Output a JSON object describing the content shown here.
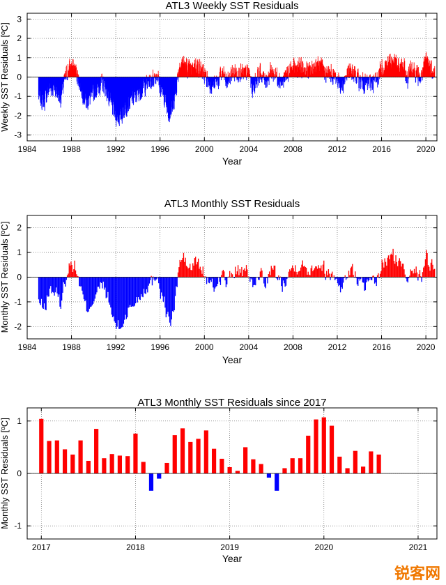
{
  "colors": {
    "positive": "#ff0000",
    "negative": "#0000ff",
    "grid": "#555555",
    "axis": "#000000"
  },
  "watermark": {
    "text": "锐客网",
    "color": "#f07800"
  },
  "chart_data": [
    {
      "type": "bar",
      "title": "ATL3 Weekly SST Residuals",
      "xlabel": "Year",
      "ylabel": "Weekly SST Residuals [ºC]",
      "xlim": [
        1984,
        2021
      ],
      "ylim": [
        -3.3,
        3.3
      ],
      "xticks": [
        1984,
        1988,
        1992,
        1996,
        2000,
        2004,
        2008,
        2012,
        2016,
        2020
      ],
      "yticks": [
        -3,
        -2,
        -1,
        0,
        1,
        2,
        3
      ],
      "grid": true,
      "step": 0.0192,
      "start": 1985.0,
      "anchors": [
        [
          1985.0,
          -1.0
        ],
        [
          1985.5,
          -1.3
        ],
        [
          1986.0,
          -0.5
        ],
        [
          1986.5,
          -0.6
        ],
        [
          1987.0,
          -1.1
        ],
        [
          1987.3,
          -0.3
        ],
        [
          1987.6,
          0.3
        ],
        [
          1988.0,
          0.6
        ],
        [
          1988.4,
          0.3
        ],
        [
          1988.8,
          -0.5
        ],
        [
          1989.3,
          -1.3
        ],
        [
          1989.8,
          -1.0
        ],
        [
          1990.3,
          -0.6
        ],
        [
          1990.8,
          -0.3
        ],
        [
          1991.2,
          -0.8
        ],
        [
          1991.6,
          -1.5
        ],
        [
          1992.0,
          -2.0
        ],
        [
          1992.4,
          -2.1
        ],
        [
          1992.8,
          -1.6
        ],
        [
          1993.2,
          -1.3
        ],
        [
          1993.7,
          -1.0
        ],
        [
          1994.2,
          -0.7
        ],
        [
          1994.7,
          -0.4
        ],
        [
          1995.2,
          -0.2
        ],
        [
          1995.7,
          0.2
        ],
        [
          1996.0,
          -0.6
        ],
        [
          1996.4,
          -1.1
        ],
        [
          1996.8,
          -1.9
        ],
        [
          1997.1,
          -1.6
        ],
        [
          1997.4,
          -0.7
        ],
        [
          1997.7,
          0.6
        ],
        [
          1998.0,
          0.8
        ],
        [
          1998.4,
          0.5
        ],
        [
          1998.8,
          0.3
        ],
        [
          1999.2,
          0.7
        ],
        [
          1999.6,
          0.4
        ],
        [
          2000.0,
          0.1
        ],
        [
          2000.4,
          -0.3
        ],
        [
          2000.8,
          -0.4
        ],
        [
          2001.2,
          -0.2
        ],
        [
          2001.6,
          0.2
        ],
        [
          2002.0,
          -0.3
        ],
        [
          2002.5,
          0.2
        ],
        [
          2003.0,
          0.3
        ],
        [
          2003.5,
          0.1
        ],
        [
          2004.0,
          0.3
        ],
        [
          2004.3,
          -0.6
        ],
        [
          2004.6,
          -0.2
        ],
        [
          2005.0,
          0.2
        ],
        [
          2005.5,
          -0.2
        ],
        [
          2006.0,
          0.3
        ],
        [
          2006.5,
          0.1
        ],
        [
          2007.0,
          -0.3
        ],
        [
          2007.5,
          0.2
        ],
        [
          2008.0,
          0.4
        ],
        [
          2008.5,
          0.5
        ],
        [
          2009.0,
          0.4
        ],
        [
          2009.5,
          0.3
        ],
        [
          2010.0,
          0.6
        ],
        [
          2010.5,
          0.5
        ],
        [
          2011.0,
          0.2
        ],
        [
          2011.5,
          0.1
        ],
        [
          2012.0,
          -0.1
        ],
        [
          2012.4,
          -0.5
        ],
        [
          2012.8,
          0.1
        ],
        [
          2013.2,
          0.3
        ],
        [
          2013.6,
          0.1
        ],
        [
          2014.0,
          -0.2
        ],
        [
          2014.5,
          -0.4
        ],
        [
          2015.0,
          -0.3
        ],
        [
          2015.5,
          -0.2
        ],
        [
          2016.0,
          0.5
        ],
        [
          2016.5,
          0.7
        ],
        [
          2017.0,
          0.9
        ],
        [
          2017.5,
          0.5
        ],
        [
          2018.0,
          0.5
        ],
        [
          2018.3,
          -0.2
        ],
        [
          2018.6,
          0.6
        ],
        [
          2019.0,
          0.3
        ],
        [
          2019.5,
          -0.1
        ],
        [
          2020.0,
          0.9
        ],
        [
          2020.4,
          0.5
        ],
        [
          2020.75,
          0.3
        ]
      ]
    },
    {
      "type": "bar",
      "title": "ATL3 Monthly SST Residuals",
      "xlabel": "Year",
      "ylabel": "Monthly SST Residuals [ºC]",
      "xlim": [
        1984,
        2021
      ],
      "ylim": [
        -2.5,
        2.5
      ],
      "xticks": [
        1984,
        1988,
        1992,
        1996,
        2000,
        2004,
        2008,
        2012,
        2016,
        2020
      ],
      "yticks": [
        -2,
        -1,
        0,
        1,
        2
      ],
      "grid": true,
      "step": 0.08333,
      "start": 1985.0,
      "anchors": [
        [
          1985.0,
          -1.0
        ],
        [
          1985.5,
          -1.3
        ],
        [
          1986.0,
          -0.5
        ],
        [
          1986.5,
          -0.6
        ],
        [
          1987.0,
          -1.1
        ],
        [
          1987.3,
          -0.3
        ],
        [
          1987.6,
          0.3
        ],
        [
          1988.0,
          0.6
        ],
        [
          1988.4,
          0.3
        ],
        [
          1988.8,
          -0.5
        ],
        [
          1989.3,
          -1.3
        ],
        [
          1989.8,
          -1.0
        ],
        [
          1990.3,
          -0.6
        ],
        [
          1990.8,
          -0.3
        ],
        [
          1991.2,
          -0.8
        ],
        [
          1991.6,
          -1.5
        ],
        [
          1992.0,
          -2.0
        ],
        [
          1992.4,
          -2.1
        ],
        [
          1992.8,
          -1.6
        ],
        [
          1993.2,
          -1.3
        ],
        [
          1993.7,
          -1.0
        ],
        [
          1994.2,
          -0.7
        ],
        [
          1994.7,
          -0.4
        ],
        [
          1995.2,
          -0.2
        ],
        [
          1995.7,
          0.2
        ],
        [
          1996.0,
          -0.6
        ],
        [
          1996.4,
          -1.1
        ],
        [
          1996.8,
          -1.9
        ],
        [
          1997.1,
          -1.6
        ],
        [
          1997.4,
          -0.7
        ],
        [
          1997.7,
          0.6
        ],
        [
          1998.0,
          0.8
        ],
        [
          1998.4,
          0.5
        ],
        [
          1998.8,
          0.3
        ],
        [
          1999.2,
          0.7
        ],
        [
          1999.6,
          0.4
        ],
        [
          2000.0,
          0.1
        ],
        [
          2000.4,
          -0.3
        ],
        [
          2000.8,
          -0.4
        ],
        [
          2001.2,
          -0.2
        ],
        [
          2001.6,
          0.2
        ],
        [
          2002.0,
          -0.3
        ],
        [
          2002.5,
          0.2
        ],
        [
          2003.0,
          0.3
        ],
        [
          2003.5,
          0.1
        ],
        [
          2004.0,
          0.3
        ],
        [
          2004.3,
          -0.6
        ],
        [
          2004.6,
          -0.2
        ],
        [
          2005.0,
          0.2
        ],
        [
          2005.5,
          -0.2
        ],
        [
          2006.0,
          0.3
        ],
        [
          2006.5,
          0.1
        ],
        [
          2007.0,
          -0.3
        ],
        [
          2007.5,
          0.2
        ],
        [
          2008.0,
          0.4
        ],
        [
          2008.5,
          0.5
        ],
        [
          2009.0,
          0.4
        ],
        [
          2009.5,
          0.3
        ],
        [
          2010.0,
          0.6
        ],
        [
          2010.5,
          0.5
        ],
        [
          2011.0,
          0.2
        ],
        [
          2011.5,
          0.1
        ],
        [
          2012.0,
          -0.1
        ],
        [
          2012.4,
          -0.5
        ],
        [
          2012.8,
          0.1
        ],
        [
          2013.2,
          0.3
        ],
        [
          2013.6,
          0.1
        ],
        [
          2014.0,
          -0.2
        ],
        [
          2014.5,
          -0.4
        ],
        [
          2015.0,
          -0.3
        ],
        [
          2015.5,
          -0.2
        ],
        [
          2016.0,
          0.5
        ],
        [
          2016.5,
          0.7
        ],
        [
          2017.0,
          0.9
        ],
        [
          2017.5,
          0.5
        ],
        [
          2018.0,
          0.5
        ],
        [
          2018.3,
          -0.2
        ],
        [
          2018.6,
          0.6
        ],
        [
          2019.0,
          0.3
        ],
        [
          2019.5,
          -0.1
        ],
        [
          2020.0,
          0.9
        ],
        [
          2020.4,
          0.5
        ],
        [
          2020.75,
          0.3
        ]
      ]
    },
    {
      "type": "bar",
      "title": "ATL3 Monthly SST Residuals since 2017",
      "xlabel": "Year",
      "ylabel": "Monthly SST Residuals [ºC]",
      "xlim": [
        2016.85,
        2021.2
      ],
      "ylim": [
        -1.25,
        1.25
      ],
      "xticks": [
        2017,
        2018,
        2019,
        2020,
        2021
      ],
      "yticks": [
        -1,
        0,
        1
      ],
      "grid": true,
      "start": 2017.0,
      "step": 0.08333,
      "values": [
        1.04,
        0.62,
        0.63,
        0.46,
        0.36,
        0.63,
        0.24,
        0.85,
        0.29,
        0.37,
        0.34,
        0.33,
        0.76,
        0.22,
        -0.33,
        -0.1,
        0.2,
        0.73,
        0.86,
        0.6,
        0.66,
        0.82,
        0.47,
        0.28,
        0.12,
        0.05,
        0.5,
        0.27,
        0.18,
        -0.08,
        -0.33,
        0.1,
        0.29,
        0.29,
        0.72,
        1.03,
        1.07,
        0.91,
        0.32,
        0.1,
        0.43,
        0.13,
        0.42,
        0.36
      ]
    }
  ]
}
